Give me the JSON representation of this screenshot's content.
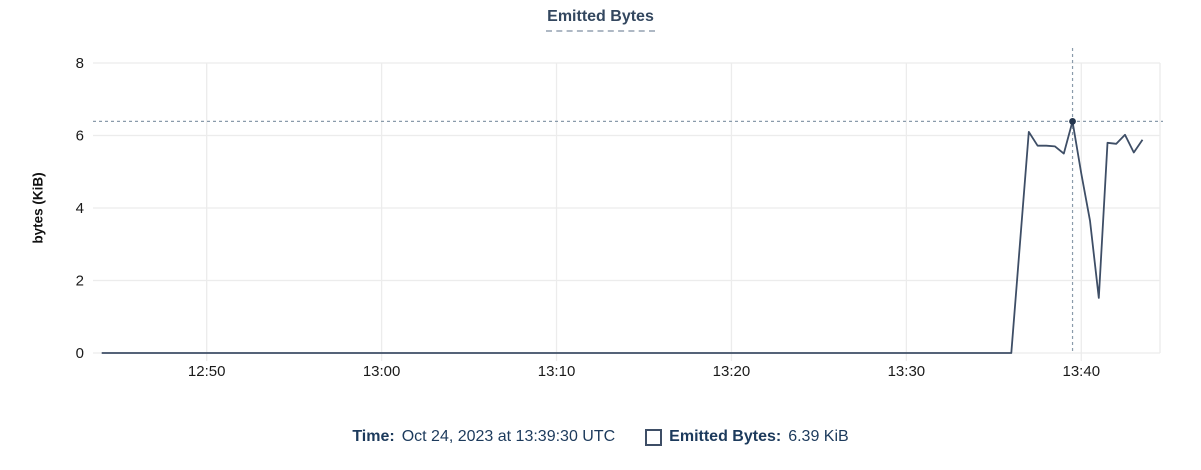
{
  "chart_data": {
    "type": "line",
    "title": "Emitted Bytes",
    "ylabel": "bytes (KiB)",
    "xlabel": "",
    "x_range": [
      "12:43:30",
      "13:44:30"
    ],
    "y_range": [
      0,
      8
    ],
    "yticks": [
      0,
      2,
      4,
      6,
      8
    ],
    "xticks": [
      "12:50",
      "13:00",
      "13:10",
      "13:20",
      "13:30",
      "13:40"
    ],
    "grid": true,
    "legend_position": "bottom",
    "series": [
      {
        "name": "Emitted Bytes",
        "points": [
          [
            "12:44:00",
            0
          ],
          [
            "13:36:00",
            0
          ],
          [
            "13:37:00",
            6.1
          ],
          [
            "13:37:30",
            5.72
          ],
          [
            "13:38:00",
            5.72
          ],
          [
            "13:38:30",
            5.7
          ],
          [
            "13:39:00",
            5.5
          ],
          [
            "13:39:30",
            6.39
          ],
          [
            "13:40:00",
            4.95
          ],
          [
            "13:40:30",
            3.65
          ],
          [
            "13:41:00",
            1.52
          ],
          [
            "13:41:30",
            5.8
          ],
          [
            "13:42:00",
            5.77
          ],
          [
            "13:42:30",
            6.02
          ],
          [
            "13:43:00",
            5.53
          ],
          [
            "13:43:30",
            5.88
          ]
        ]
      }
    ],
    "crosshair": {
      "time": "13:39:30",
      "value": 6.39
    }
  },
  "footer": {
    "time_label": "Time:",
    "time_value": "Oct 24, 2023 at 13:39:30 UTC",
    "series_label": "Emitted Bytes:",
    "series_value": "6.39 KiB"
  },
  "colors": {
    "line": "#3e4e66",
    "dot": "#24364e",
    "crosshair": "#8a9bab",
    "grid": "#ececec",
    "title": "#33475f",
    "axis_text": "#1a1a1a",
    "legend_text": "#1c3a5c"
  }
}
